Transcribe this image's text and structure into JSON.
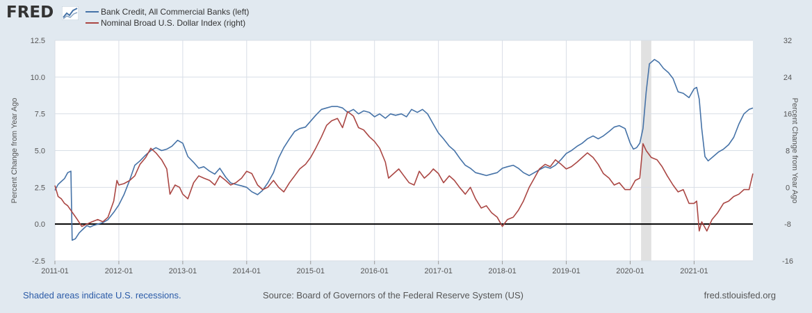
{
  "header": {
    "logo_text": "FRED",
    "logo_icon": "chart-line-icon"
  },
  "chart_data": {
    "type": "line",
    "title": "",
    "xlabel": "",
    "ylabel_left": "Percent Change from Year Ago",
    "ylabel_right": "Percent Change from Year Ago",
    "y_left_lim": [
      -2.5,
      12.5
    ],
    "y_right_lim": [
      -16,
      32
    ],
    "y_left_ticks": [
      "12.5",
      "10.0",
      "7.5",
      "5.0",
      "2.5",
      "0.0",
      "-2.5"
    ],
    "y_right_ticks": [
      "32",
      "24",
      "16",
      "8",
      "0",
      "-8",
      "-16"
    ],
    "x_range": [
      2011.0,
      2021.92
    ],
    "x_ticks": [
      {
        "label": "2011-01",
        "t": 2011.0
      },
      {
        "label": "2012-01",
        "t": 2012.0
      },
      {
        "label": "2013-01",
        "t": 2013.0
      },
      {
        "label": "2014-01",
        "t": 2014.0
      },
      {
        "label": "2015-01",
        "t": 2015.0
      },
      {
        "label": "2016-01",
        "t": 2016.0
      },
      {
        "label": "2017-01",
        "t": 2017.0
      },
      {
        "label": "2018-01",
        "t": 2018.0
      },
      {
        "label": "2019-01",
        "t": 2019.0
      },
      {
        "label": "2020-01",
        "t": 2020.0
      },
      {
        "label": "2021-01",
        "t": 2021.0
      }
    ],
    "zero_line_left": 0.0,
    "recessions": [
      {
        "start": 2020.17,
        "end": 2020.33
      }
    ],
    "series": [
      {
        "name": "Bank Credit, All Commercial Banks (left)",
        "axis": "left",
        "color": "#4572a7",
        "points": [
          [
            2011.0,
            2.3
          ],
          [
            2011.05,
            2.7
          ],
          [
            2011.1,
            2.9
          ],
          [
            2011.15,
            3.1
          ],
          [
            2011.2,
            3.5
          ],
          [
            2011.25,
            3.6
          ],
          [
            2011.27,
            -1.1
          ],
          [
            2011.32,
            -1.0
          ],
          [
            2011.38,
            -0.6
          ],
          [
            2011.45,
            -0.3
          ],
          [
            2011.5,
            -0.1
          ],
          [
            2011.55,
            -0.2
          ],
          [
            2011.6,
            -0.1
          ],
          [
            2011.67,
            0.0
          ],
          [
            2011.75,
            0.1
          ],
          [
            2011.83,
            0.3
          ],
          [
            2011.92,
            0.8
          ],
          [
            2012.0,
            1.3
          ],
          [
            2012.08,
            2.0
          ],
          [
            2012.17,
            3.0
          ],
          [
            2012.25,
            4.0
          ],
          [
            2012.33,
            4.3
          ],
          [
            2012.42,
            4.7
          ],
          [
            2012.5,
            5.0
          ],
          [
            2012.58,
            5.2
          ],
          [
            2012.67,
            5.0
          ],
          [
            2012.75,
            5.1
          ],
          [
            2012.83,
            5.3
          ],
          [
            2012.92,
            5.7
          ],
          [
            2013.0,
            5.5
          ],
          [
            2013.08,
            4.6
          ],
          [
            2013.17,
            4.2
          ],
          [
            2013.25,
            3.8
          ],
          [
            2013.33,
            3.9
          ],
          [
            2013.42,
            3.6
          ],
          [
            2013.5,
            3.4
          ],
          [
            2013.58,
            3.8
          ],
          [
            2013.67,
            3.2
          ],
          [
            2013.75,
            2.8
          ],
          [
            2013.83,
            2.7
          ],
          [
            2013.92,
            2.6
          ],
          [
            2014.0,
            2.5
          ],
          [
            2014.08,
            2.2
          ],
          [
            2014.17,
            2.0
          ],
          [
            2014.25,
            2.3
          ],
          [
            2014.33,
            2.8
          ],
          [
            2014.42,
            3.5
          ],
          [
            2014.5,
            4.5
          ],
          [
            2014.58,
            5.2
          ],
          [
            2014.67,
            5.8
          ],
          [
            2014.75,
            6.3
          ],
          [
            2014.83,
            6.5
          ],
          [
            2014.92,
            6.6
          ],
          [
            2015.0,
            7.0
          ],
          [
            2015.08,
            7.4
          ],
          [
            2015.17,
            7.8
          ],
          [
            2015.25,
            7.9
          ],
          [
            2015.33,
            8.0
          ],
          [
            2015.42,
            8.0
          ],
          [
            2015.5,
            7.9
          ],
          [
            2015.58,
            7.6
          ],
          [
            2015.67,
            7.8
          ],
          [
            2015.75,
            7.5
          ],
          [
            2015.83,
            7.7
          ],
          [
            2015.92,
            7.6
          ],
          [
            2016.0,
            7.3
          ],
          [
            2016.08,
            7.5
          ],
          [
            2016.17,
            7.2
          ],
          [
            2016.25,
            7.5
          ],
          [
            2016.33,
            7.4
          ],
          [
            2016.42,
            7.5
          ],
          [
            2016.5,
            7.3
          ],
          [
            2016.58,
            7.8
          ],
          [
            2016.67,
            7.6
          ],
          [
            2016.75,
            7.8
          ],
          [
            2016.83,
            7.5
          ],
          [
            2016.92,
            6.8
          ],
          [
            2017.0,
            6.2
          ],
          [
            2017.08,
            5.8
          ],
          [
            2017.17,
            5.3
          ],
          [
            2017.25,
            5.0
          ],
          [
            2017.33,
            4.5
          ],
          [
            2017.42,
            4.0
          ],
          [
            2017.5,
            3.8
          ],
          [
            2017.58,
            3.5
          ],
          [
            2017.67,
            3.4
          ],
          [
            2017.75,
            3.3
          ],
          [
            2017.83,
            3.4
          ],
          [
            2017.92,
            3.5
          ],
          [
            2018.0,
            3.8
          ],
          [
            2018.08,
            3.9
          ],
          [
            2018.17,
            4.0
          ],
          [
            2018.25,
            3.8
          ],
          [
            2018.33,
            3.5
          ],
          [
            2018.42,
            3.3
          ],
          [
            2018.5,
            3.5
          ],
          [
            2018.58,
            3.7
          ],
          [
            2018.67,
            3.9
          ],
          [
            2018.75,
            3.8
          ],
          [
            2018.83,
            4.0
          ],
          [
            2018.92,
            4.4
          ],
          [
            2019.0,
            4.8
          ],
          [
            2019.08,
            5.0
          ],
          [
            2019.17,
            5.3
          ],
          [
            2019.25,
            5.5
          ],
          [
            2019.33,
            5.8
          ],
          [
            2019.42,
            6.0
          ],
          [
            2019.5,
            5.8
          ],
          [
            2019.58,
            6.0
          ],
          [
            2019.67,
            6.3
          ],
          [
            2019.75,
            6.6
          ],
          [
            2019.83,
            6.7
          ],
          [
            2019.92,
            6.5
          ],
          [
            2020.0,
            5.5
          ],
          [
            2020.05,
            5.1
          ],
          [
            2020.1,
            5.2
          ],
          [
            2020.15,
            5.5
          ],
          [
            2020.2,
            6.5
          ],
          [
            2020.25,
            9.0
          ],
          [
            2020.3,
            10.9
          ],
          [
            2020.38,
            11.2
          ],
          [
            2020.45,
            11.0
          ],
          [
            2020.52,
            10.6
          ],
          [
            2020.6,
            10.3
          ],
          [
            2020.67,
            9.9
          ],
          [
            2020.75,
            9.0
          ],
          [
            2020.83,
            8.9
          ],
          [
            2020.92,
            8.6
          ],
          [
            2021.0,
            9.2
          ],
          [
            2021.04,
            9.3
          ],
          [
            2021.08,
            8.5
          ],
          [
            2021.12,
            6.5
          ],
          [
            2021.17,
            4.6
          ],
          [
            2021.22,
            4.3
          ],
          [
            2021.3,
            4.6
          ],
          [
            2021.38,
            4.9
          ],
          [
            2021.46,
            5.1
          ],
          [
            2021.54,
            5.4
          ],
          [
            2021.62,
            5.9
          ],
          [
            2021.7,
            6.8
          ],
          [
            2021.78,
            7.5
          ],
          [
            2021.86,
            7.8
          ],
          [
            2021.92,
            7.9
          ]
        ]
      },
      {
        "name": "Nominal Broad U.S. Dollar Index (right)",
        "axis": "right",
        "color": "#aa4643",
        "points": [
          [
            2011.0,
            0.4
          ],
          [
            2011.05,
            -2.0
          ],
          [
            2011.1,
            -2.5
          ],
          [
            2011.15,
            -3.5
          ],
          [
            2011.2,
            -4.0
          ],
          [
            2011.25,
            -5.0
          ],
          [
            2011.3,
            -6.0
          ],
          [
            2011.35,
            -7.0
          ],
          [
            2011.42,
            -8.5
          ],
          [
            2011.5,
            -8.0
          ],
          [
            2011.58,
            -7.5
          ],
          [
            2011.67,
            -7.0
          ],
          [
            2011.75,
            -7.5
          ],
          [
            2011.83,
            -6.5
          ],
          [
            2011.92,
            -3.0
          ],
          [
            2011.97,
            1.5
          ],
          [
            2012.0,
            0.5
          ],
          [
            2012.08,
            0.8
          ],
          [
            2012.17,
            1.5
          ],
          [
            2012.25,
            2.5
          ],
          [
            2012.33,
            5.0
          ],
          [
            2012.42,
            6.5
          ],
          [
            2012.5,
            8.5
          ],
          [
            2012.58,
            7.5
          ],
          [
            2012.67,
            6.0
          ],
          [
            2012.75,
            4.0
          ],
          [
            2012.8,
            -1.5
          ],
          [
            2012.88,
            0.5
          ],
          [
            2012.95,
            0.0
          ],
          [
            2013.0,
            -1.5
          ],
          [
            2013.08,
            -2.5
          ],
          [
            2013.17,
            1.0
          ],
          [
            2013.25,
            2.5
          ],
          [
            2013.33,
            2.0
          ],
          [
            2013.42,
            1.5
          ],
          [
            2013.5,
            0.5
          ],
          [
            2013.58,
            2.5
          ],
          [
            2013.67,
            1.5
          ],
          [
            2013.75,
            0.5
          ],
          [
            2013.83,
            1.0
          ],
          [
            2013.92,
            2.0
          ],
          [
            2014.0,
            3.5
          ],
          [
            2014.08,
            3.0
          ],
          [
            2014.17,
            0.5
          ],
          [
            2014.25,
            -0.5
          ],
          [
            2014.33,
            0.0
          ],
          [
            2014.42,
            1.5
          ],
          [
            2014.5,
            0.0
          ],
          [
            2014.58,
            -1.0
          ],
          [
            2014.67,
            1.0
          ],
          [
            2014.75,
            2.5
          ],
          [
            2014.83,
            4.0
          ],
          [
            2014.92,
            5.0
          ],
          [
            2015.0,
            6.5
          ],
          [
            2015.08,
            8.5
          ],
          [
            2015.17,
            11.0
          ],
          [
            2015.25,
            13.5
          ],
          [
            2015.33,
            14.5
          ],
          [
            2015.42,
            15.0
          ],
          [
            2015.5,
            13.0
          ],
          [
            2015.58,
            16.5
          ],
          [
            2015.67,
            15.5
          ],
          [
            2015.75,
            13.0
          ],
          [
            2015.83,
            12.5
          ],
          [
            2015.92,
            11.0
          ],
          [
            2016.0,
            10.0
          ],
          [
            2016.08,
            8.5
          ],
          [
            2016.17,
            5.5
          ],
          [
            2016.22,
            2.0
          ],
          [
            2016.3,
            3.0
          ],
          [
            2016.38,
            4.0
          ],
          [
            2016.46,
            2.5
          ],
          [
            2016.54,
            1.0
          ],
          [
            2016.62,
            0.5
          ],
          [
            2016.7,
            3.5
          ],
          [
            2016.78,
            2.0
          ],
          [
            2016.86,
            3.0
          ],
          [
            2016.92,
            4.0
          ],
          [
            2017.0,
            3.0
          ],
          [
            2017.08,
            1.0
          ],
          [
            2017.17,
            2.5
          ],
          [
            2017.25,
            1.5
          ],
          [
            2017.33,
            0.0
          ],
          [
            2017.42,
            -1.5
          ],
          [
            2017.5,
            0.0
          ],
          [
            2017.58,
            -2.5
          ],
          [
            2017.67,
            -4.5
          ],
          [
            2017.75,
            -4.0
          ],
          [
            2017.83,
            -5.5
          ],
          [
            2017.92,
            -6.5
          ],
          [
            2018.0,
            -8.5
          ],
          [
            2018.08,
            -7.0
          ],
          [
            2018.17,
            -6.5
          ],
          [
            2018.25,
            -5.0
          ],
          [
            2018.33,
            -3.0
          ],
          [
            2018.42,
            0.0
          ],
          [
            2018.5,
            2.0
          ],
          [
            2018.58,
            4.0
          ],
          [
            2018.67,
            5.0
          ],
          [
            2018.75,
            4.5
          ],
          [
            2018.83,
            6.0
          ],
          [
            2018.92,
            5.0
          ],
          [
            2019.0,
            4.0
          ],
          [
            2019.08,
            4.5
          ],
          [
            2019.17,
            5.5
          ],
          [
            2019.25,
            6.5
          ],
          [
            2019.33,
            7.5
          ],
          [
            2019.42,
            6.5
          ],
          [
            2019.5,
            5.0
          ],
          [
            2019.58,
            3.0
          ],
          [
            2019.67,
            2.0
          ],
          [
            2019.75,
            0.5
          ],
          [
            2019.83,
            1.0
          ],
          [
            2019.92,
            -0.5
          ],
          [
            2020.0,
            -0.5
          ],
          [
            2020.08,
            1.5
          ],
          [
            2020.15,
            2.0
          ],
          [
            2020.2,
            9.5
          ],
          [
            2020.25,
            8.0
          ],
          [
            2020.33,
            6.5
          ],
          [
            2020.42,
            6.0
          ],
          [
            2020.5,
            4.5
          ],
          [
            2020.58,
            2.5
          ],
          [
            2020.67,
            0.5
          ],
          [
            2020.75,
            -1.0
          ],
          [
            2020.83,
            -0.5
          ],
          [
            2020.92,
            -3.5
          ],
          [
            2021.0,
            -3.5
          ],
          [
            2021.04,
            -3.0
          ],
          [
            2021.08,
            -9.5
          ],
          [
            2021.12,
            -7.5
          ],
          [
            2021.2,
            -9.5
          ],
          [
            2021.28,
            -7.0
          ],
          [
            2021.37,
            -5.5
          ],
          [
            2021.46,
            -3.5
          ],
          [
            2021.54,
            -3.0
          ],
          [
            2021.62,
            -2.0
          ],
          [
            2021.7,
            -1.5
          ],
          [
            2021.78,
            -0.5
          ],
          [
            2021.86,
            -0.5
          ],
          [
            2021.92,
            3.0
          ]
        ]
      }
    ]
  },
  "footer": {
    "note": "Shaded areas indicate U.S. recessions.",
    "source": "Source: Board of Governors of the Federal Reserve System (US)",
    "site": "fred.stlouisfed.org"
  }
}
